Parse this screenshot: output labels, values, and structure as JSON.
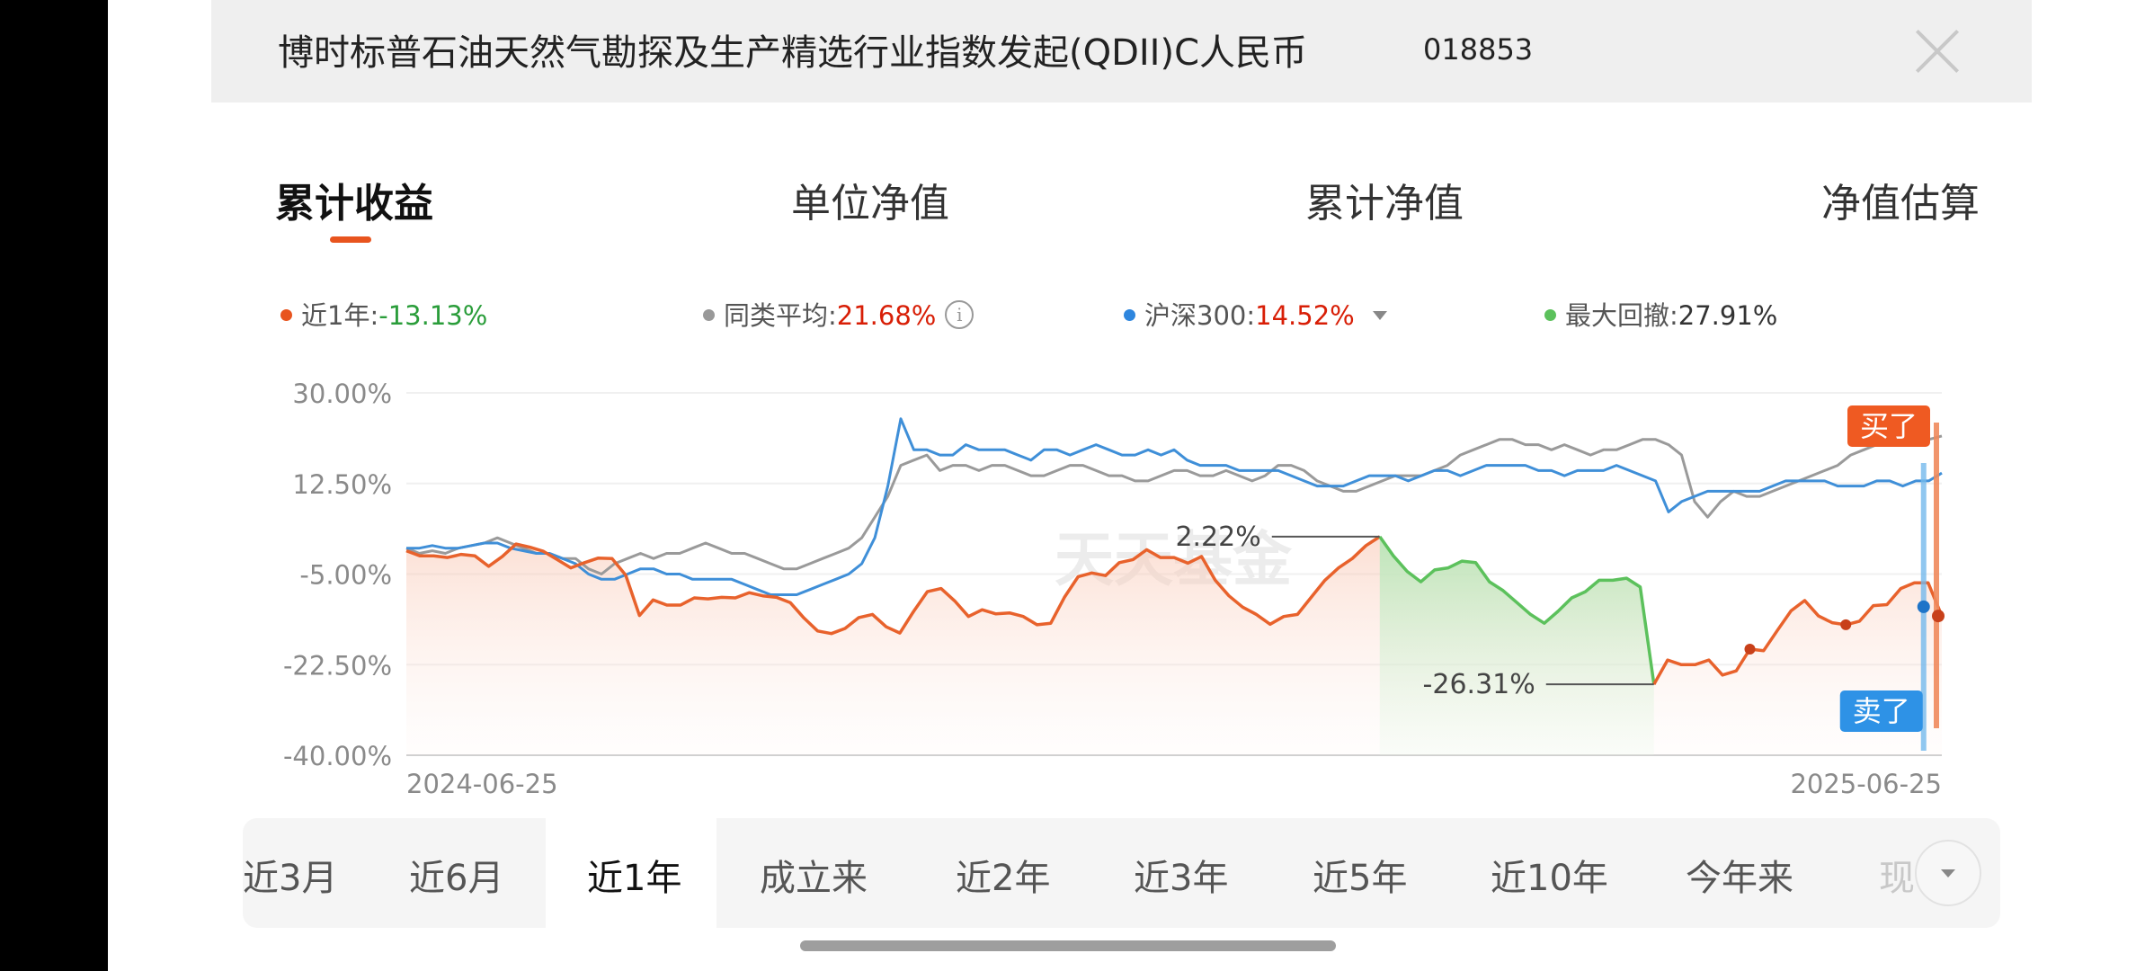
{
  "header": {
    "title": "博时标普石油天然气勘探及生产精选行业指数发起(QDII)C人民币",
    "code": "018853"
  },
  "tabs": [
    "累计收益",
    "单位净值",
    "累计净值",
    "净值估算"
  ],
  "legend": {
    "series1_label": "近1年:",
    "series1_value": "-13.13%",
    "series2_label": "同类平均:",
    "series2_value": "21.68%",
    "series3_label": "沪深300:",
    "series3_value": "14.52%",
    "series4_label": "最大回撤:",
    "series4_value": "27.91%"
  },
  "chart_data": {
    "type": "line",
    "ylim": [
      -40,
      30
    ],
    "y_ticks": [
      "30.00%",
      "12.50%",
      "-5.00%",
      "-22.50%",
      "-40.00%"
    ],
    "x_labels": [
      "2024-06-25",
      "2025-06-25"
    ],
    "watermark": "天天基金",
    "colors": {
      "fund": "#e8622c",
      "peer": "#9a9a9a",
      "hs300": "#3f8fd8",
      "drawdown": "#5cc15c"
    },
    "series": [
      {
        "name": "近1年",
        "values": [
          -0.5,
          -1.5,
          -1.5,
          -1.8,
          -1.2,
          -1.5,
          -3.5,
          -1.6,
          0.8,
          0.2,
          -0.6,
          -2.2,
          -3.8,
          -2.8,
          -1.9,
          -2,
          -5.2,
          -13,
          -10,
          -11,
          -11,
          -9.6,
          -9.8,
          -9.5,
          -9.6,
          -8.6,
          -9.2,
          -9.5,
          -10.5,
          -13.5,
          -16,
          -16.5,
          -15.5,
          -13.4,
          -12.8,
          -15.2,
          -16.4,
          -12.2,
          -8.4,
          -7.8,
          -10.2,
          -13.2,
          -11.9,
          -12.7,
          -12.5,
          -13.2,
          -14.8,
          -14.5,
          -9.5,
          -5.5,
          -4.8,
          -5.3,
          -2.8,
          -2.2,
          -0.3,
          -1.8,
          -1.8,
          -2.9,
          -1.6,
          -6.2,
          -9.2,
          -11.4,
          -12.8,
          -14.7,
          -13.2,
          -12.8,
          -9.5,
          -6.2,
          -3.8,
          -2,
          0.5,
          2.22,
          -1.5,
          -4.5,
          -6.5,
          -4.2,
          -3.8,
          -2.5,
          -2.8,
          -6.5,
          -8.2,
          -10.5,
          -12.8,
          -14.5,
          -12.2,
          -9.6,
          -8.4,
          -6.2,
          -6.2,
          -5.8,
          -7.5,
          -26.31,
          -21.6,
          -22.5,
          -22.5,
          -21.6,
          -24.5,
          -23.7,
          -19.5,
          -19.8,
          -15.9,
          -12.1,
          -10.1,
          -13.1,
          -14.4,
          -14.8,
          -14.1,
          -11.1,
          -10.9,
          -7.8,
          -6.7,
          -6.7,
          -13.1
        ]
      },
      {
        "name": "同类平均",
        "values": [
          0,
          -1,
          -0.5,
          -1,
          0,
          0.5,
          1,
          2,
          1,
          0,
          -1,
          -1,
          -2,
          -2,
          -4,
          -5,
          -3,
          -2,
          -1,
          -2,
          -1,
          -1,
          0,
          1,
          0,
          -1,
          -1,
          -2,
          -3,
          -4,
          -4,
          -3,
          -2,
          -1,
          0,
          2,
          6,
          10,
          16,
          17,
          18,
          15,
          16,
          16,
          15,
          16,
          16,
          15,
          14,
          14,
          15,
          16,
          16,
          15,
          14,
          14,
          13,
          13,
          14,
          15,
          15,
          14,
          14,
          15,
          14,
          13,
          14,
          16,
          16,
          15,
          13,
          12,
          11,
          11,
          12,
          13,
          14,
          14,
          14,
          15,
          16,
          18,
          19,
          20,
          21,
          21,
          20,
          20,
          19,
          20,
          19,
          18,
          19,
          19,
          20,
          21,
          21,
          20,
          18,
          9,
          6,
          9,
          11,
          10,
          10,
          11,
          12,
          13,
          14,
          15,
          16,
          18,
          19,
          20,
          20,
          21,
          20,
          21,
          21.68
        ]
      },
      {
        "name": "沪深300",
        "values": [
          0,
          0,
          0.5,
          0,
          0,
          0.5,
          1,
          1,
          0,
          -0.5,
          -1,
          -1,
          -2,
          -3,
          -5,
          -6,
          -6,
          -5,
          -4,
          -4,
          -5,
          -5,
          -6,
          -6,
          -6,
          -6,
          -7,
          -8,
          -9,
          -9,
          -9,
          -8,
          -7,
          -6,
          -5,
          -3,
          2,
          12,
          25,
          19,
          19,
          18,
          18,
          20,
          19,
          19,
          19,
          18,
          17,
          19,
          19,
          18,
          19,
          20,
          19,
          18,
          18,
          19,
          18,
          19,
          17,
          16,
          16,
          16,
          15,
          15,
          15,
          15,
          14,
          13,
          12,
          12,
          12,
          13,
          14,
          14,
          14,
          13,
          14,
          15,
          15,
          14,
          15,
          16,
          16,
          16,
          16,
          15,
          15,
          14,
          15,
          15,
          15,
          16,
          15,
          14,
          13,
          7,
          9,
          10,
          11,
          11,
          11,
          11,
          11,
          12,
          13,
          13,
          13,
          13,
          12,
          12,
          12,
          13,
          13,
          12,
          13,
          13,
          14.52
        ]
      }
    ],
    "drawdown": {
      "label": "最大回撤",
      "value": "27.91%",
      "peak_label": "2.22%",
      "trough_label": "-26.31%"
    },
    "markers": {
      "buy_label": "买了",
      "sell_label": "卖了"
    }
  },
  "periods": [
    "近3月",
    "近6月",
    "近1年",
    "成立来",
    "近2年",
    "近3年",
    "近5年",
    "近10年",
    "今年来",
    "现"
  ]
}
